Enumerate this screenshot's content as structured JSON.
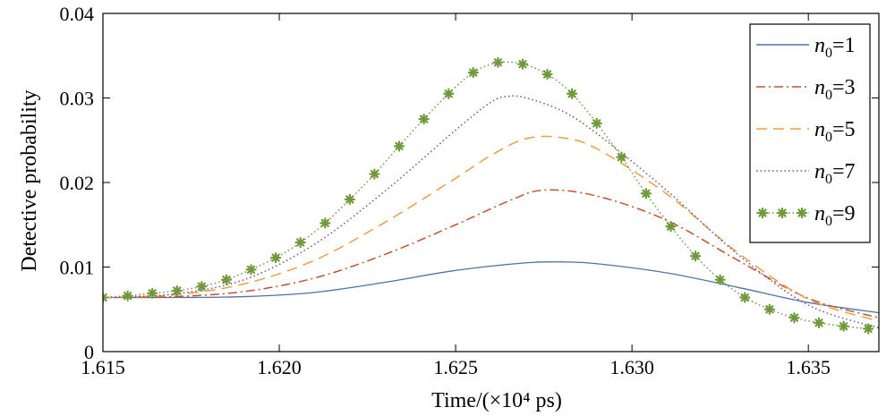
{
  "chart_data": {
    "type": "line",
    "title": "",
    "xlabel": "Time/(×10⁴ ps)",
    "ylabel": "Detective probability",
    "xlim": [
      1.615,
      1.637
    ],
    "ylim": [
      0,
      0.04
    ],
    "xticks": [
      1.615,
      1.62,
      1.625,
      1.63,
      1.635
    ],
    "xtick_labels": [
      "1.615",
      "1.620",
      "1.625",
      "1.630",
      "1.635"
    ],
    "yticks": [
      0,
      0.01,
      0.02,
      0.03,
      0.04
    ],
    "ytick_labels": [
      "0",
      "0.01",
      "0.02",
      "0.03",
      "0.04"
    ],
    "grid": false,
    "legend_position": "top-right",
    "series": [
      {
        "name": "n0=1",
        "legend_italic": "n",
        "legend_sub": "0",
        "legend_rest": "=1",
        "style": "solid",
        "color": "#4f72a6",
        "x": [
          1.615,
          1.617,
          1.619,
          1.621,
          1.623,
          1.625,
          1.627,
          1.628,
          1.629,
          1.631,
          1.633,
          1.635,
          1.637
        ],
        "y": [
          0.0064,
          0.0064,
          0.0065,
          0.007,
          0.0082,
          0.0096,
          0.0105,
          0.0106,
          0.0104,
          0.0093,
          0.0076,
          0.0058,
          0.0046
        ]
      },
      {
        "name": "n0=3",
        "legend_italic": "n",
        "legend_sub": "0",
        "legend_rest": "=3",
        "style": "dashdot",
        "color": "#c4532f",
        "x": [
          1.615,
          1.617,
          1.619,
          1.621,
          1.623,
          1.625,
          1.6265,
          1.6275,
          1.629,
          1.631,
          1.633,
          1.635,
          1.637
        ],
        "y": [
          0.0064,
          0.0065,
          0.0071,
          0.0087,
          0.0115,
          0.015,
          0.0178,
          0.0191,
          0.0184,
          0.0155,
          0.0108,
          0.0063,
          0.004
        ]
      },
      {
        "name": "n0=5",
        "legend_italic": "n",
        "legend_sub": "0",
        "legend_rest": "=5",
        "style": "dashed",
        "color": "#e8a142",
        "x": [
          1.615,
          1.617,
          1.619,
          1.621,
          1.623,
          1.625,
          1.626,
          1.627,
          1.628,
          1.629,
          1.631,
          1.633,
          1.635,
          1.637
        ],
        "y": [
          0.0064,
          0.0067,
          0.008,
          0.0108,
          0.0153,
          0.0205,
          0.0232,
          0.0252,
          0.0253,
          0.024,
          0.0186,
          0.0117,
          0.0062,
          0.0036
        ]
      },
      {
        "name": "n0=7",
        "legend_italic": "n",
        "legend_sub": "0",
        "legend_rest": "=7",
        "style": "dotted",
        "color": "#7c4d8e",
        "x": [
          1.615,
          1.617,
          1.619,
          1.621,
          1.623,
          1.625,
          1.626,
          1.6265,
          1.627,
          1.628,
          1.629,
          1.631,
          1.633,
          1.635,
          1.637
        ],
        "y": [
          0.0064,
          0.0068,
          0.0085,
          0.0127,
          0.019,
          0.0262,
          0.0295,
          0.0302,
          0.03,
          0.0285,
          0.0258,
          0.019,
          0.0115,
          0.0055,
          0.0028
        ]
      },
      {
        "name": "n0=9",
        "legend_italic": "n",
        "legend_sub": "0",
        "legend_rest": "=9",
        "style": "dotted-markers",
        "color": "#6e9a3c",
        "marker": "asterisk",
        "x": [
          1.615,
          1.6157,
          1.6164,
          1.6171,
          1.6178,
          1.6185,
          1.6192,
          1.6199,
          1.6206,
          1.6213,
          1.622,
          1.6227,
          1.6234,
          1.6241,
          1.6248,
          1.6255,
          1.6262,
          1.6269,
          1.6276,
          1.6283,
          1.629,
          1.6297,
          1.6304,
          1.6311,
          1.6318,
          1.6325,
          1.6332,
          1.6339,
          1.6346,
          1.6353,
          1.636,
          1.6367
        ],
        "y": [
          0.0064,
          0.0066,
          0.0069,
          0.0072,
          0.0077,
          0.0085,
          0.0097,
          0.0111,
          0.0129,
          0.0152,
          0.018,
          0.021,
          0.0243,
          0.0275,
          0.0305,
          0.033,
          0.0342,
          0.034,
          0.0328,
          0.0305,
          0.027,
          0.023,
          0.0187,
          0.0148,
          0.0113,
          0.0085,
          0.0064,
          0.005,
          0.004,
          0.0034,
          0.003,
          0.0027
        ]
      }
    ]
  }
}
